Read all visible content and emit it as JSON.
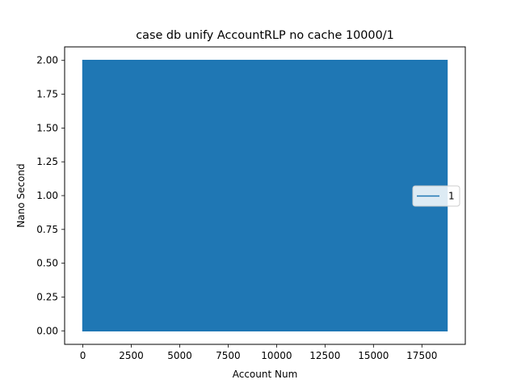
{
  "chart_data": {
    "type": "line",
    "title": "case db unify AccountRLP no cache 10000/1",
    "xlabel": "Account Num",
    "ylabel": "Nano Second",
    "xlim": [
      -940,
      19740
    ],
    "ylim": [
      -0.1,
      2.1
    ],
    "x_ticks": [
      0,
      2500,
      5000,
      7500,
      10000,
      12500,
      15000,
      17500
    ],
    "y_ticks": [
      0.0,
      0.25,
      0.5,
      0.75,
      1.0,
      1.25,
      1.5,
      1.75,
      2.0
    ],
    "x_tick_labels": [
      "0",
      "2500",
      "5000",
      "7500",
      "10000",
      "12500",
      "15000",
      "17500"
    ],
    "y_tick_labels": [
      "0.00",
      "0.25",
      "0.50",
      "0.75",
      "1.00",
      "1.25",
      "1.50",
      "1.75",
      "2.00"
    ],
    "series": [
      {
        "name": "1",
        "color": "#1f77b4",
        "x_range": [
          0,
          18800
        ],
        "values_oscillate_between": [
          0,
          2
        ]
      }
    ],
    "legend": {
      "placement": "center-right",
      "entries": [
        "1"
      ]
    },
    "grid": false
  }
}
